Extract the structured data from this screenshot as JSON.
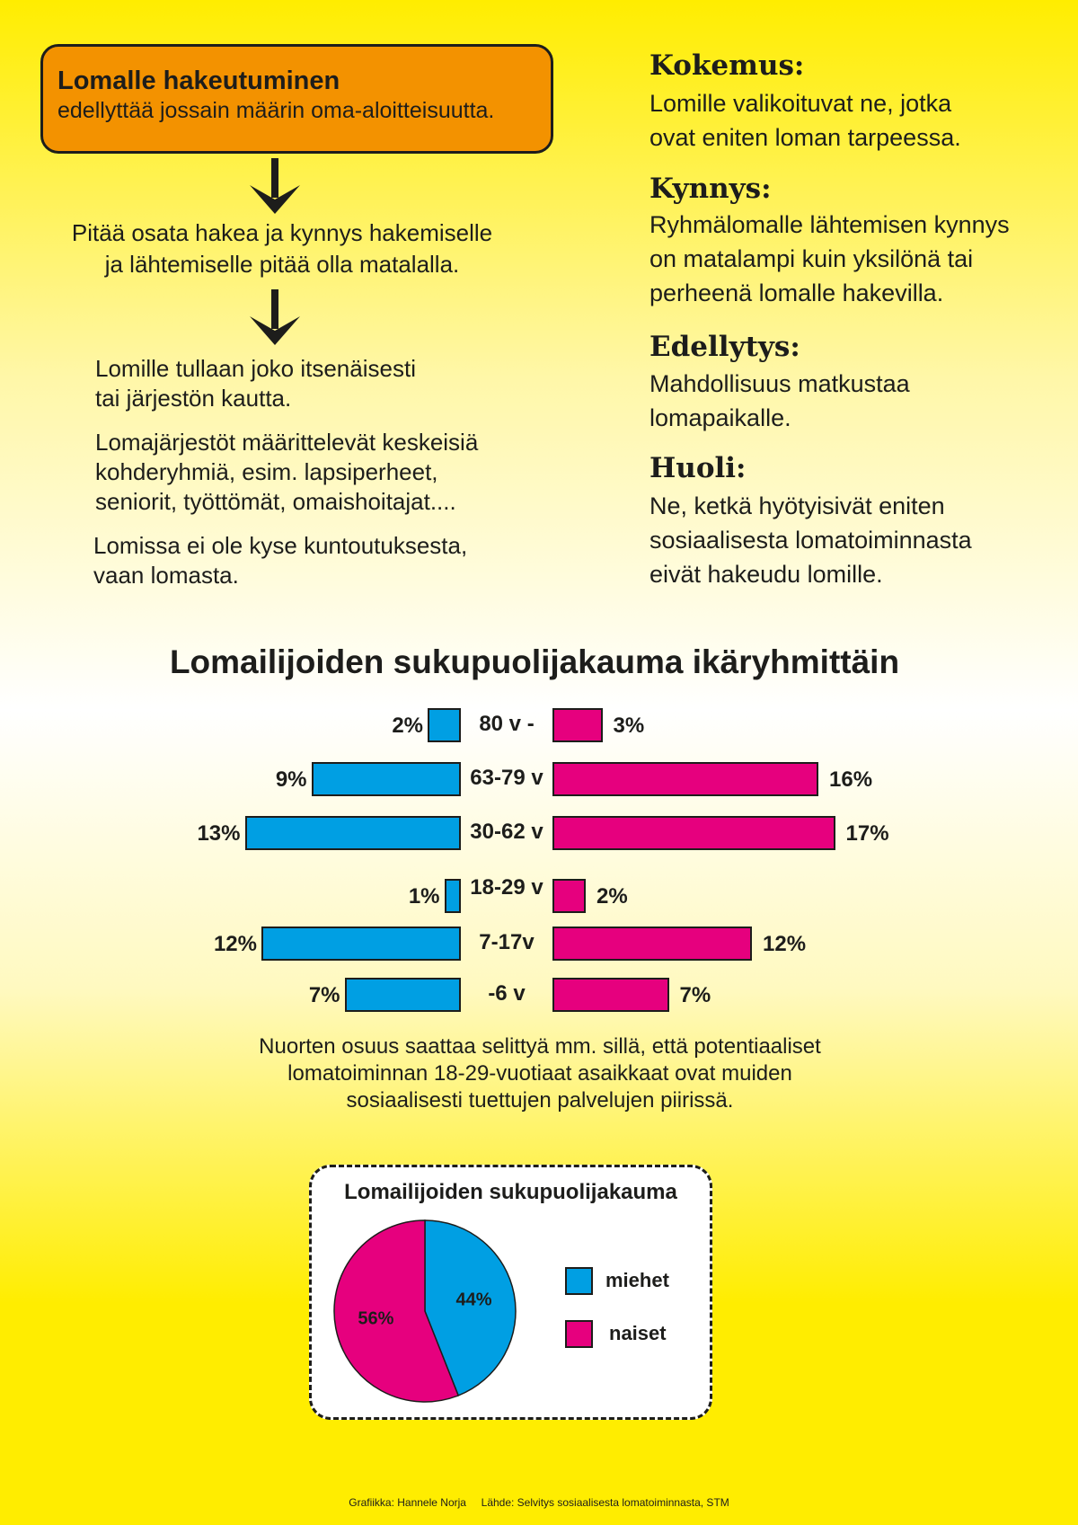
{
  "intro": {
    "title": "Lomalle hakeutuminen",
    "subtitle": "edellyttää jossain määrin oma-aloitteisuutta.",
    "step2": [
      "Pitää osata hakea ja kynnys hakemiselle",
      "ja lähtemiselle pitää olla matalalla."
    ],
    "paragraphs": [
      [
        "Lomille tullaan joko itsenäisesti",
        "tai järjestön kautta."
      ],
      [
        "Lomajärjestöt määrittelevät keskeisiä",
        "kohderyhmiä,  esim. lapsiperheet,",
        "seniorit, työttömät, omaishoitajat...."
      ],
      [
        "Lomissa ei ole kyse kuntoutuksesta,",
        "vaan lomasta."
      ]
    ]
  },
  "sections": [
    {
      "heading": "Kokemus:",
      "lines": [
        "Lomille valikoituvat ne, jotka",
        "ovat eniten loman tarpeessa."
      ]
    },
    {
      "heading": "Kynnys:",
      "lines": [
        "Ryhmälomalle lähtemisen kynnys",
        "on matalampi kuin yksilönä tai",
        "perheenä lomalle hakevilla."
      ]
    },
    {
      "heading": "Edellytys:",
      "lines": [
        "Mahdollisuus matkustaa",
        "lomapaikalle."
      ]
    },
    {
      "heading": "Huoli:",
      "lines": [
        "Ne, ketkä hyötyisivät eniten",
        "sosiaalisesta lomatoiminnasta",
        "eivät hakeudu lomille."
      ]
    }
  ],
  "colors": {
    "men": "#009fe3",
    "women": "#e6007e",
    "accent": "#f39200",
    "background": "#ffed00"
  },
  "chart_data": [
    {
      "type": "bar",
      "title": "Lomailijoiden sukupuolijakauma ikäryhmittäin",
      "categories": [
        "80 v -",
        "63-79 v",
        "30-62 v",
        "18-29 v",
        "7-17v",
        "-6 v"
      ],
      "series": [
        {
          "values": [
            2,
            9,
            13,
            1,
            12,
            7
          ],
          "labels": [
            "2%",
            "9%",
            "13%",
            "1%",
            "12%",
            "7%"
          ]
        },
        {
          "values": [
            3,
            16,
            17,
            2,
            12,
            7
          ],
          "labels": [
            "3%",
            "16%",
            "17%",
            "2%",
            "12%",
            "7%"
          ]
        }
      ],
      "orientation": "horizontal-diverging"
    },
    {
      "type": "pie",
      "title": "Lomailijoiden sukupuolijakauma",
      "slices": [
        {
          "name": "miehet",
          "value": 44,
          "label": "44%"
        },
        {
          "name": "naiset",
          "value": 56,
          "label": "56%"
        }
      ],
      "legend": "right"
    }
  ],
  "caption": [
    "Nuorten osuus saattaa selittyä mm. sillä, että potentiaaliset",
    "lomatoiminnan 18-29-vuotiaat asaikkaat ovat muiden",
    "sosiaalisesti tuettujen palvelujen piirissä."
  ],
  "footer": {
    "credit": "Grafiikka: Hannele Norja",
    "source": "Lähde: Selvitys sosiaalisesta lomatoiminnasta, STM"
  }
}
